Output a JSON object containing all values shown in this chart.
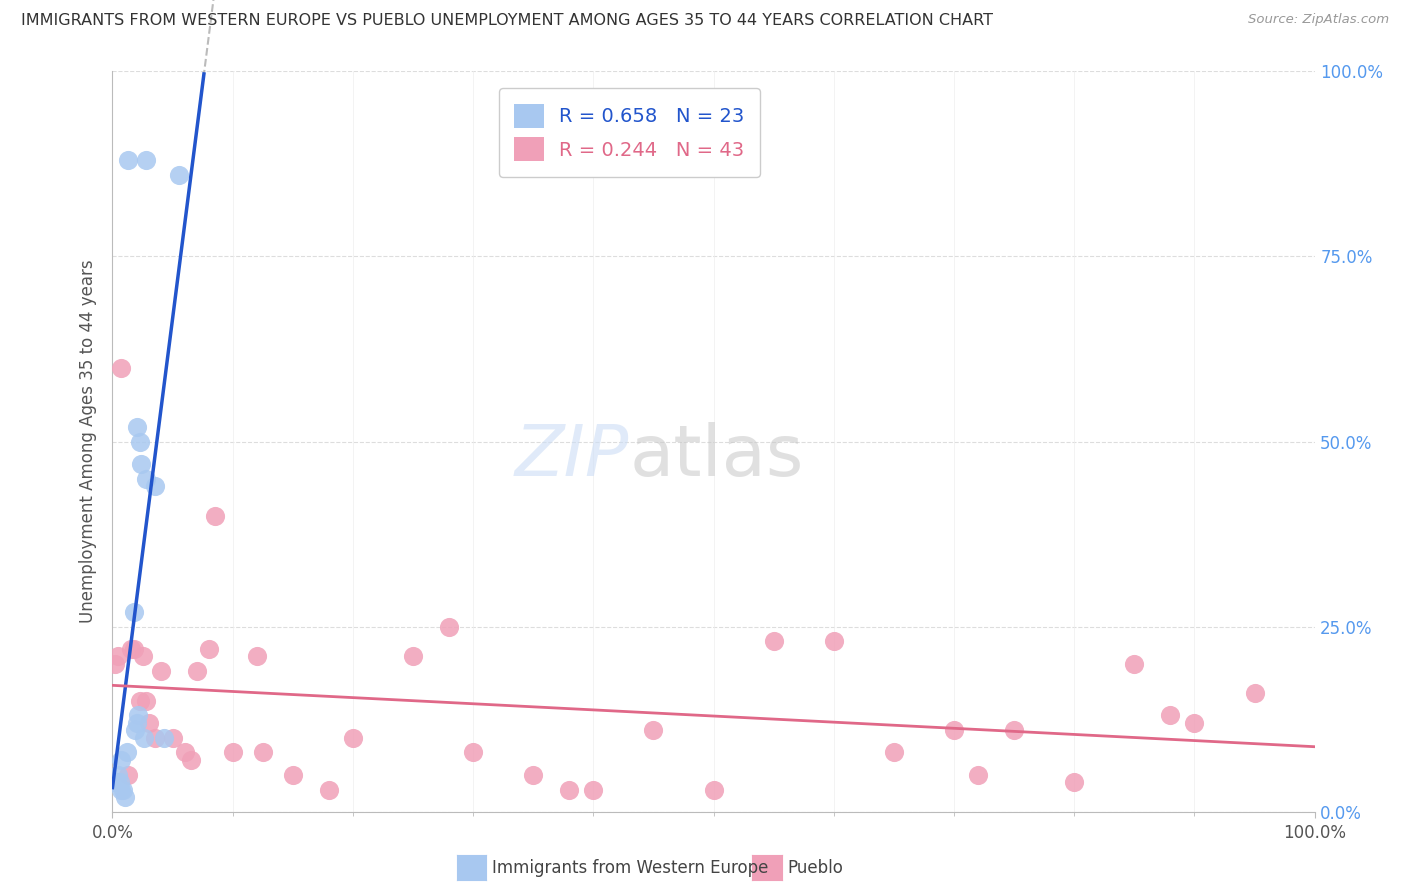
{
  "title": "IMMIGRANTS FROM WESTERN EUROPE VS PUEBLO UNEMPLOYMENT AMONG AGES 35 TO 44 YEARS CORRELATION CHART",
  "source": "Source: ZipAtlas.com",
  "ylabel": "Unemployment Among Ages 35 to 44 years",
  "legend1_label": "Immigrants from Western Europe",
  "legend2_label": "Pueblo",
  "R1": 0.658,
  "N1": 23,
  "R2": 0.244,
  "N2": 43,
  "color_blue": "#a8c8f0",
  "color_pink": "#f0a0b8",
  "color_blue_line": "#2255cc",
  "color_pink_line": "#e06888",
  "blue_scatter_x": [
    2.5,
    5.5,
    4.0,
    4.5,
    4.8,
    5.5,
    7.0,
    3.5,
    4.2,
    4.0,
    3.8,
    8.5,
    5.2,
    2.4,
    1.5,
    1.0,
    0.5,
    0.7,
    1.2,
    1.4,
    1.8,
    2.0,
    11.0
  ],
  "blue_scatter_y": [
    88,
    88,
    52,
    50,
    47,
    45,
    44,
    27,
    13,
    12,
    11,
    10,
    10,
    8,
    7,
    5,
    4,
    4,
    4,
    3,
    3,
    2,
    86
  ],
  "pink_scatter_x": [
    0.5,
    1.0,
    3.5,
    3.0,
    4.5,
    5.0,
    6.0,
    8.0,
    10.0,
    12.0,
    14.0,
    16.0,
    20.0,
    24.0,
    30.0,
    40.0,
    50.0,
    60.0,
    70.0,
    80.0,
    90.0,
    100.0,
    110.0,
    120.0,
    130.0,
    140.0,
    150.0,
    160.0,
    170.0,
    180.0,
    190.0,
    1.5,
    2.5,
    5.5,
    7.0,
    13.0,
    17.0,
    25.0,
    36.0,
    56.0,
    76.0,
    144.0,
    176.0
  ],
  "pink_scatter_y": [
    20,
    21,
    22,
    22,
    15,
    21,
    12,
    19,
    10,
    8,
    19,
    22,
    8,
    21,
    5,
    10,
    21,
    8,
    5,
    3,
    11,
    3,
    23,
    23,
    8,
    11,
    11,
    4,
    20,
    12,
    16,
    60,
    5,
    15,
    10,
    7,
    40,
    8,
    3,
    25,
    3,
    5,
    13
  ],
  "xlim": [
    0,
    200
  ],
  "ylim": [
    0,
    100
  ],
  "xtick_positions": [
    0,
    200
  ],
  "xtick_labels": [
    "0.0%",
    "100.0%"
  ],
  "yticks": [
    0,
    25,
    50,
    75,
    100
  ],
  "ytick_labels_right": [
    "0.0%",
    "25.0%",
    "50.0%",
    "75.0%",
    "100.0%"
  ]
}
